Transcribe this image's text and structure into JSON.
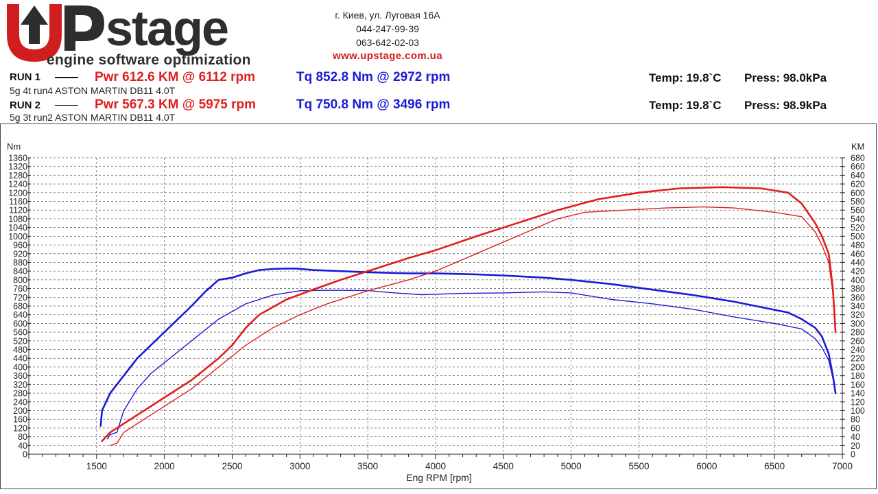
{
  "header": {
    "logo_tagline": "engine software optimization",
    "address": "г. Киев, ул. Луговая 16А",
    "phone1": "044-247-99-39",
    "phone2": "063-642-02-03",
    "website": "www.upstage.com.ua",
    "colors": {
      "brand_red": "#d01e1e",
      "brand_dark": "#2e2e2e"
    }
  },
  "runs": [
    {
      "label": "RUN 1",
      "power": "Pwr  612.6 KM @ 6112 rpm",
      "torque": "Tq 852.8 Nm @ 2972 rpm",
      "temp": "Temp: 19.8`C",
      "press": "Press: 98.0kPa",
      "desc": "5g 4t run4 ASTON MARTIN DB11 4.0T"
    },
    {
      "label": "RUN 2",
      "power": "Pwr  567.3 KM @ 5975 rpm",
      "torque": "Tq 750.8 Nm @ 3496 rpm",
      "temp": "Temp: 19.8`C",
      "press": "Press: 98.9kPa",
      "desc": "5g 3t run2 ASTON MARTIN DB11 4.0T"
    }
  ],
  "chart_data": {
    "type": "line",
    "xlabel": "Eng RPM [rpm]",
    "ylabel_left": "Nm",
    "ylabel_right": "KM",
    "xlim": [
      1000,
      7000
    ],
    "ylim_left": [
      0,
      1360
    ],
    "ylim_right": [
      0,
      680
    ],
    "x_ticks": [
      1500,
      2000,
      2500,
      3000,
      3500,
      4000,
      4500,
      5000,
      5500,
      6000,
      6500,
      7000
    ],
    "y_left_ticks_step": 40,
    "y_right_ticks_step": 20,
    "grid": true,
    "series": [
      {
        "axis": "left",
        "color": "#1a1ad6",
        "width": 2.6,
        "x": [
          1530,
          1540,
          1600,
          1700,
          1800,
          1900,
          2000,
          2100,
          2200,
          2300,
          2400,
          2500,
          2600,
          2700,
          2800,
          2900,
          2972,
          3100,
          3300,
          3500,
          3800,
          4000,
          4300,
          4500,
          4800,
          5000,
          5300,
          5600,
          5900,
          6200,
          6400,
          6600,
          6700,
          6800,
          6850,
          6900,
          6930,
          6950
        ],
        "y": [
          130,
          200,
          280,
          360,
          440,
          500,
          560,
          620,
          680,
          745,
          800,
          810,
          830,
          845,
          850,
          852,
          852,
          845,
          840,
          835,
          830,
          830,
          825,
          820,
          810,
          800,
          780,
          755,
          730,
          700,
          675,
          650,
          620,
          580,
          540,
          460,
          360,
          280
        ]
      },
      {
        "axis": "left",
        "color": "#1a1ad6",
        "width": 1.4,
        "x": [
          1580,
          1600,
          1650,
          1700,
          1800,
          1900,
          2000,
          2200,
          2400,
          2600,
          2800,
          3000,
          3200,
          3496,
          3700,
          3900,
          4200,
          4500,
          4800,
          5000,
          5300,
          5600,
          5900,
          6200,
          6500,
          6700,
          6800,
          6850,
          6900,
          6930,
          6950
        ],
        "y": [
          70,
          90,
          100,
          200,
          300,
          370,
          420,
          520,
          620,
          690,
          730,
          750,
          752,
          751,
          740,
          732,
          738,
          740,
          745,
          740,
          710,
          690,
          665,
          630,
          600,
          575,
          530,
          490,
          430,
          350,
          280
        ]
      },
      {
        "axis": "right",
        "color": "#e01e1e",
        "width": 2.6,
        "x": [
          1540,
          1600,
          1700,
          1800,
          1900,
          2000,
          2200,
          2400,
          2500,
          2600,
          2700,
          2900,
          3100,
          3300,
          3500,
          3800,
          4000,
          4300,
          4600,
          4900,
          5200,
          5500,
          5800,
          6112,
          6400,
          6600,
          6700,
          6800,
          6850,
          6900,
          6930,
          6950
        ],
        "y": [
          30,
          50,
          70,
          90,
          110,
          130,
          170,
          220,
          250,
          290,
          320,
          355,
          378,
          400,
          420,
          450,
          468,
          500,
          530,
          560,
          585,
          600,
          610,
          612.6,
          610,
          600,
          575,
          530,
          500,
          460,
          380,
          280
        ]
      },
      {
        "axis": "right",
        "color": "#e01e1e",
        "width": 1.4,
        "x": [
          1600,
          1650,
          1700,
          1800,
          1900,
          2000,
          2200,
          2400,
          2600,
          2800,
          3000,
          3200,
          3500,
          3800,
          4000,
          4300,
          4600,
          4900,
          5100,
          5400,
          5700,
          5975,
          6200,
          6500,
          6700,
          6800,
          6850,
          6900,
          6930,
          6950
        ],
        "y": [
          20,
          25,
          50,
          70,
          90,
          110,
          150,
          200,
          250,
          290,
          320,
          345,
          375,
          400,
          420,
          460,
          500,
          540,
          555,
          560,
          565,
          567.3,
          565,
          555,
          545,
          510,
          480,
          440,
          370,
          280
        ]
      }
    ]
  }
}
